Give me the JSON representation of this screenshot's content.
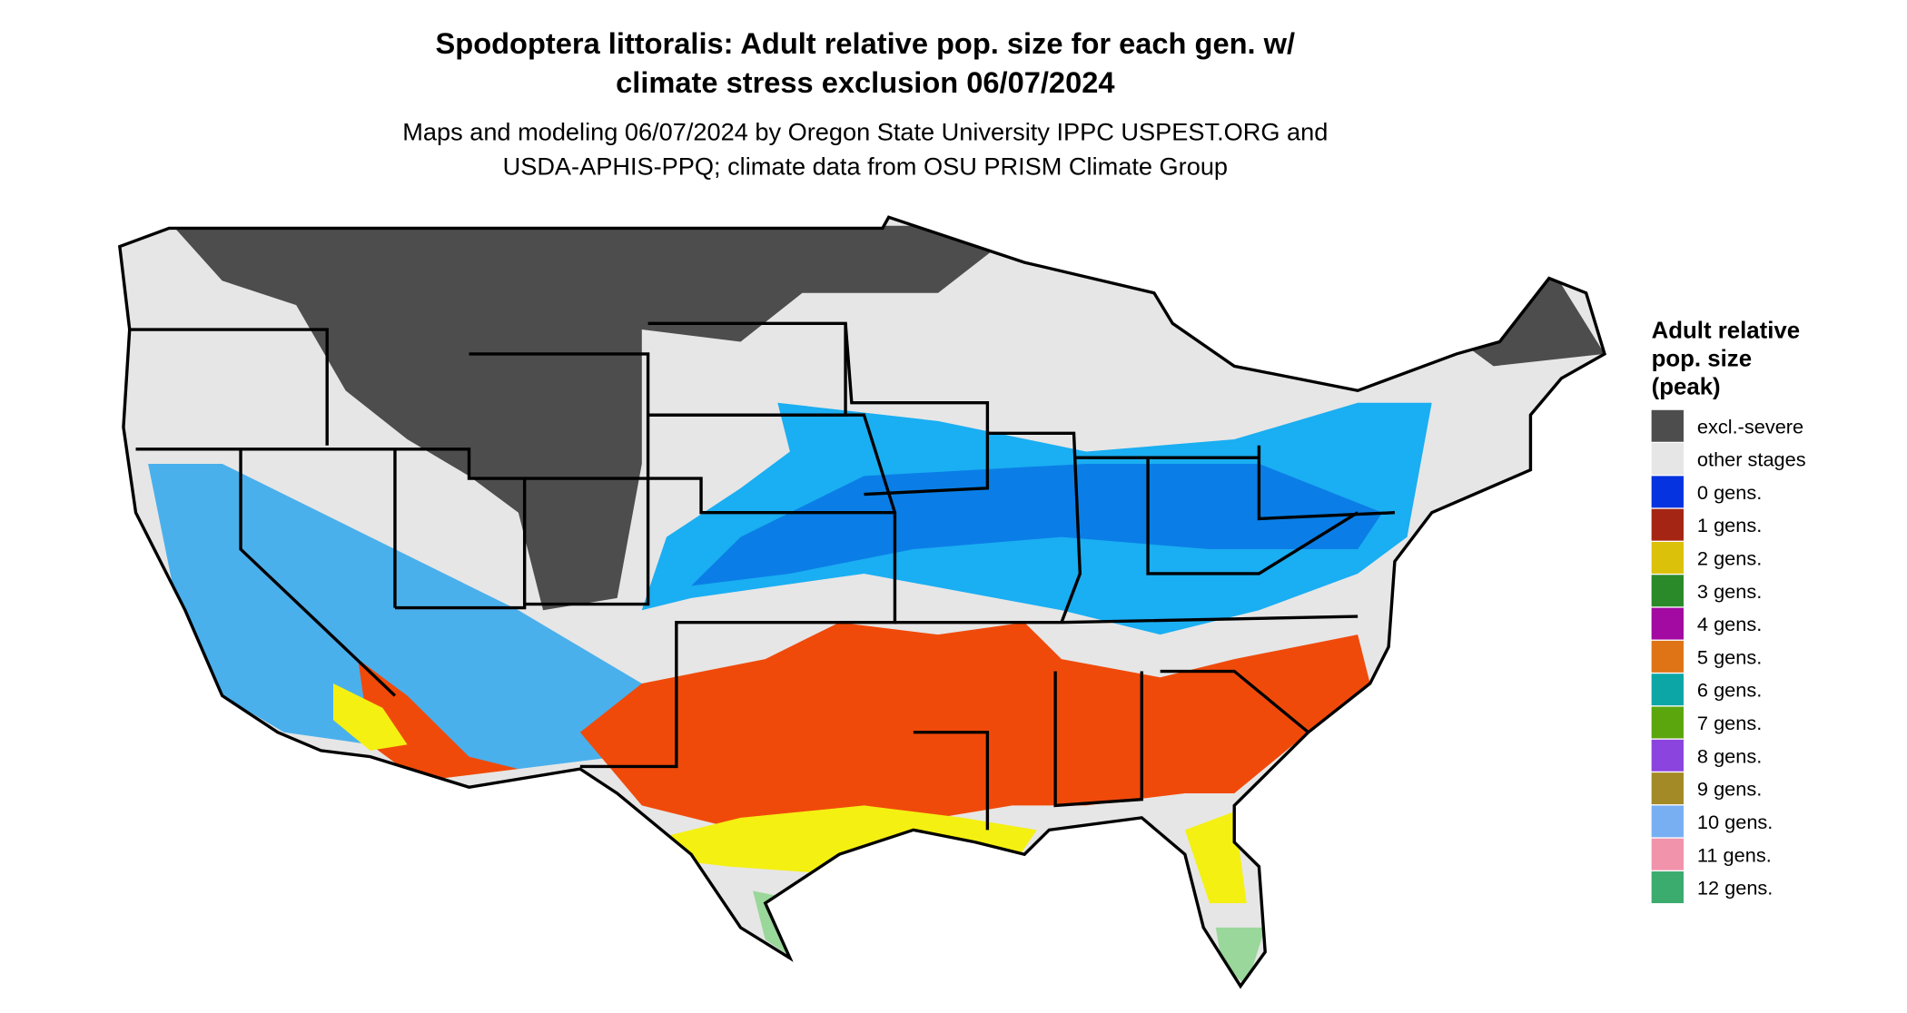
{
  "title": [
    "Spodoptera littoralis: Adult relative pop. size for each gen. w/",
    "climate stress exclusion 06/07/2024"
  ],
  "subtitle": [
    "Maps and modeling 06/07/2024 by Oregon State University IPPC USPEST.ORG and",
    "USDA-APHIS-PPQ; climate data from OSU PRISM Climate Group"
  ],
  "legend": {
    "title": [
      "Adult relative",
      "pop. size",
      "(peak)"
    ],
    "items": [
      {
        "label": "excl.-severe",
        "color": "#4d4d4d"
      },
      {
        "label": "other stages",
        "color": "#e6e6e6"
      },
      {
        "label": "0 gens.",
        "color": "#0433df"
      },
      {
        "label": "1 gens.",
        "color": "#a52514"
      },
      {
        "label": "2 gens.",
        "color": "#dcc10a"
      },
      {
        "label": "3 gens.",
        "color": "#2a8a2a"
      },
      {
        "label": "4 gens.",
        "color": "#a20aa2"
      },
      {
        "label": "5 gens.",
        "color": "#de7416"
      },
      {
        "label": "6 gens.",
        "color": "#0da6a6"
      },
      {
        "label": "7 gens.",
        "color": "#5ca60d"
      },
      {
        "label": "8 gens.",
        "color": "#8b44de"
      },
      {
        "label": "9 gens.",
        "color": "#a48a26"
      },
      {
        "label": "10 gens.",
        "color": "#78aff2"
      },
      {
        "label": "11 gens.",
        "color": "#f293ac"
      },
      {
        "label": "12 gens.",
        "color": "#3bac6e"
      }
    ]
  }
}
